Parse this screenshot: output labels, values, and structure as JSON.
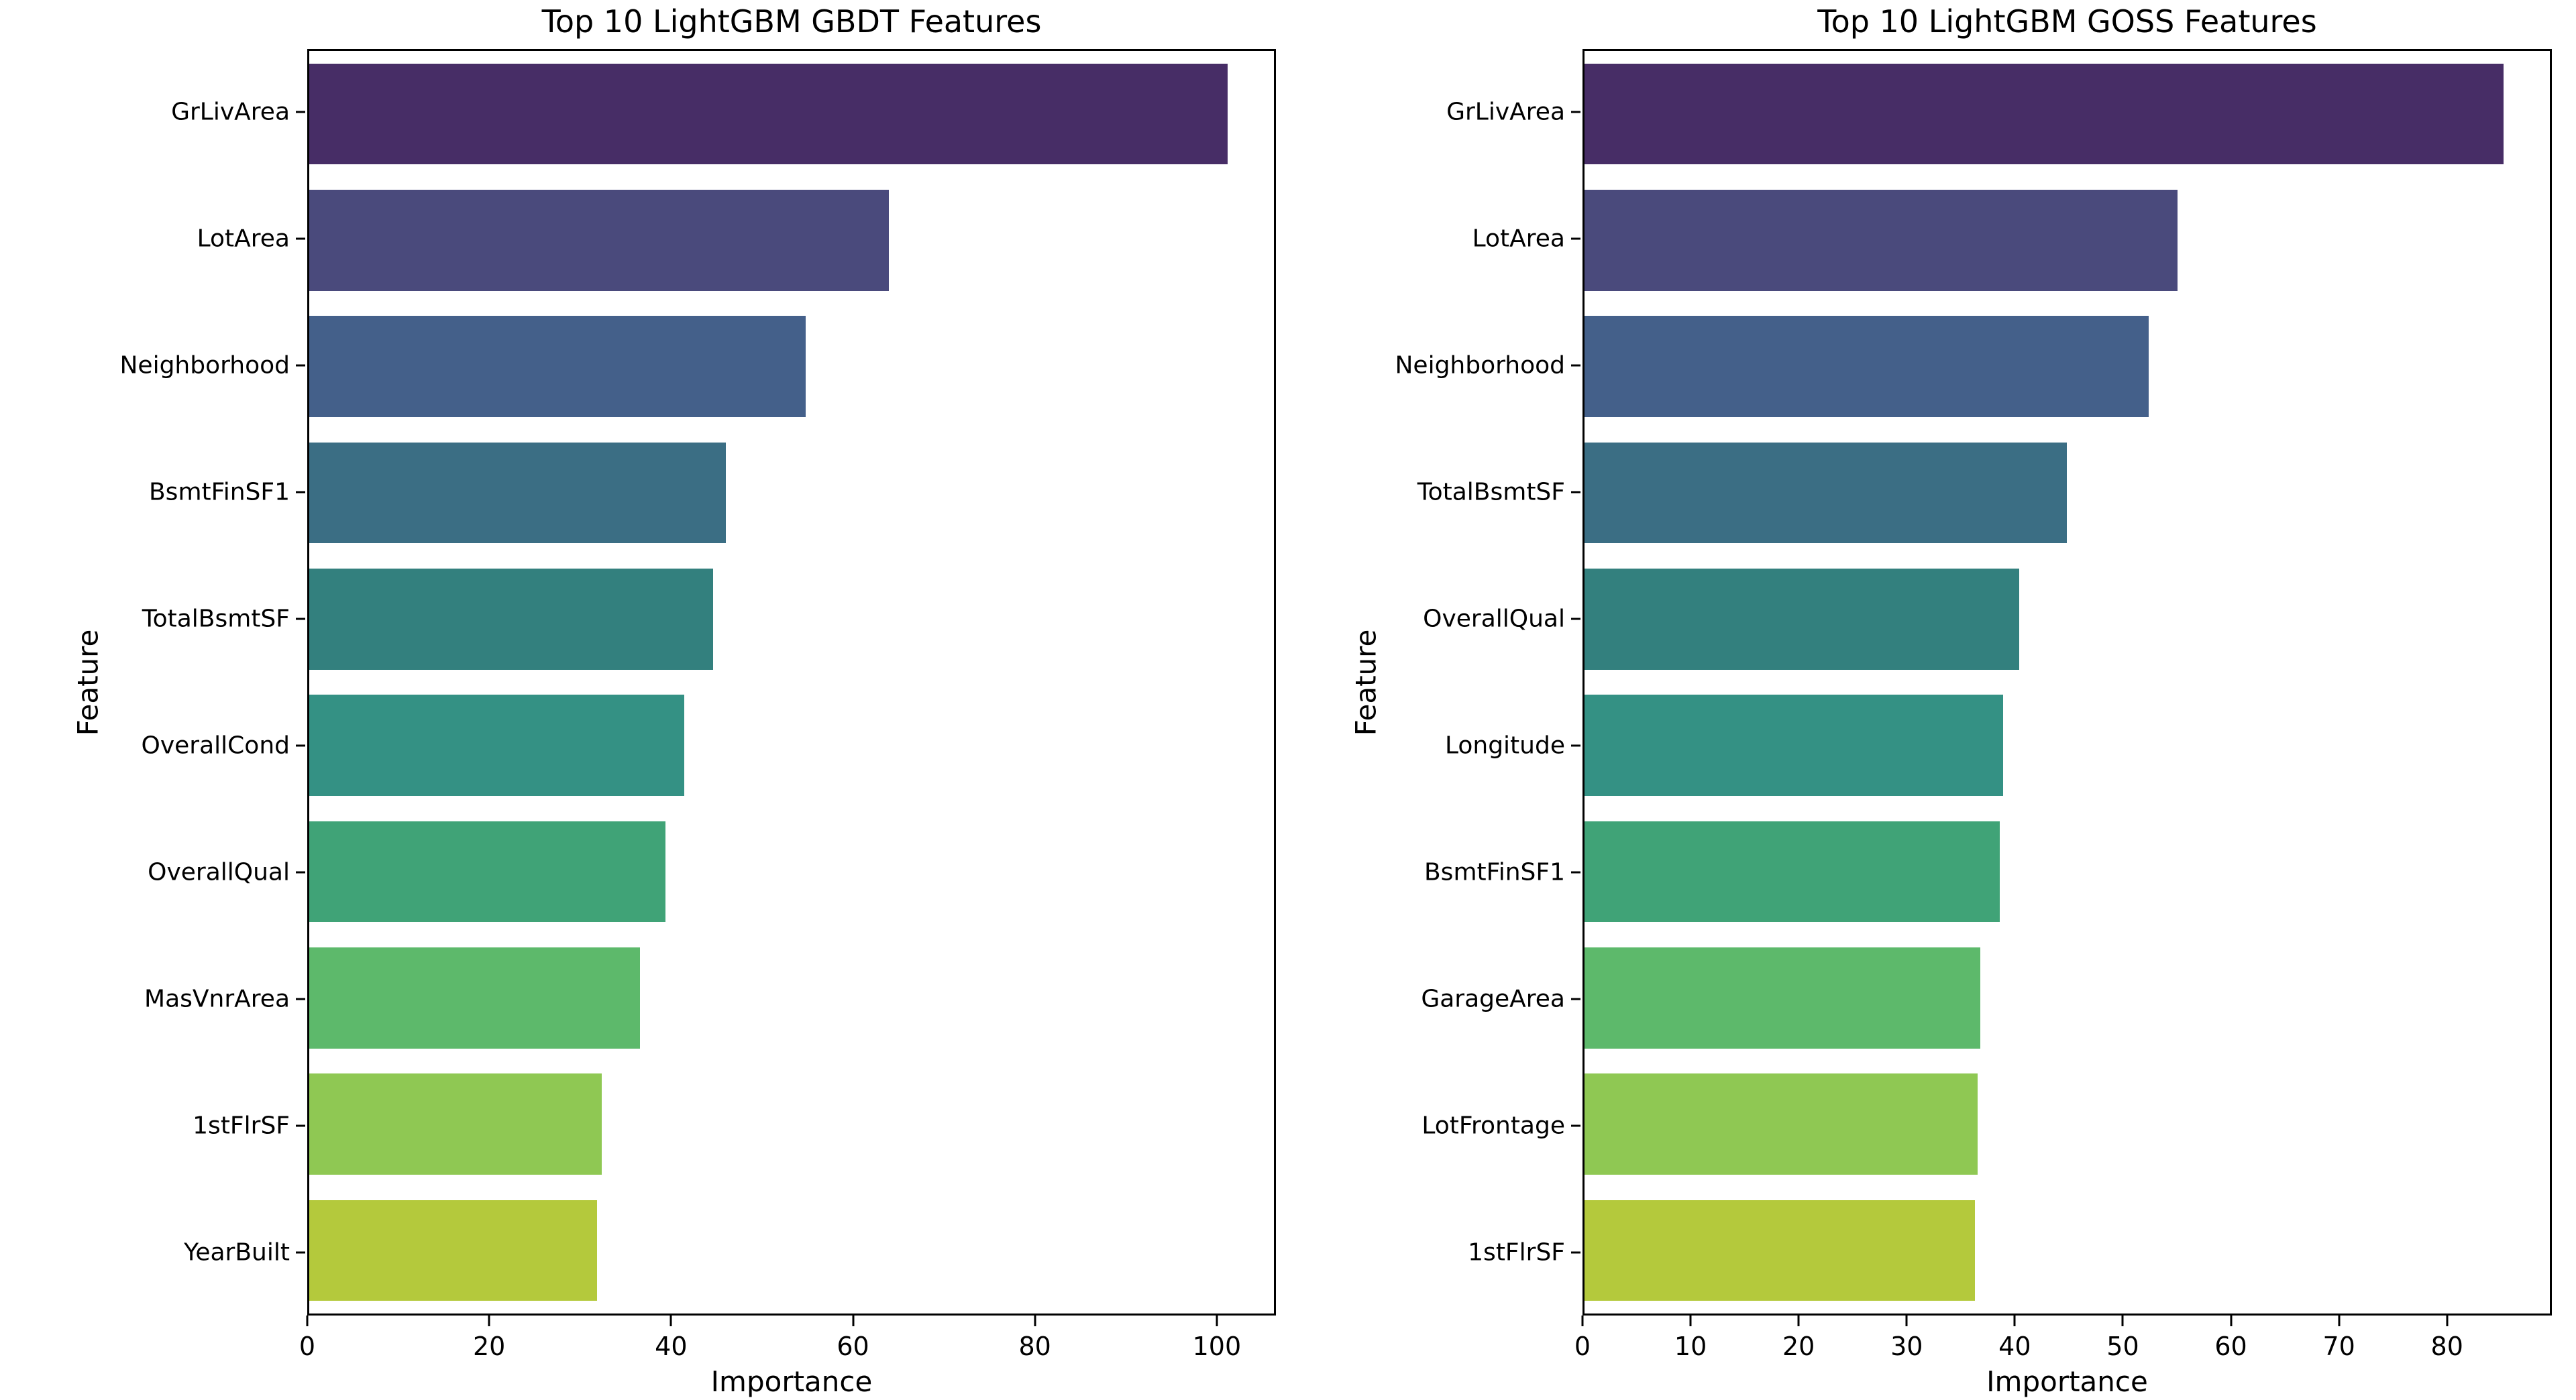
{
  "figure": {
    "background": "#ffffff",
    "palette": [
      "#472d66",
      "#4a4a7c",
      "#44608a",
      "#3b6e84",
      "#33807e",
      "#349184",
      "#40a377",
      "#5db96b",
      "#8fc853",
      "#b4c93c"
    ]
  },
  "chart_data": [
    {
      "type": "bar",
      "orientation": "horizontal",
      "title": "Top 10 LightGBM GBDT Features",
      "xlabel": "Importance",
      "ylabel": "Feature",
      "categories": [
        "GrLivArea",
        "LotArea",
        "Neighborhood",
        "BsmtFinSF1",
        "TotalBsmtSF",
        "OverallCond",
        "OverallQual",
        "MasVnrArea",
        "1stFlrSF",
        "YearBuilt"
      ],
      "values": [
        101.4,
        64.0,
        54.8,
        46.0,
        44.6,
        41.4,
        39.3,
        36.5,
        32.3,
        31.8
      ],
      "xlim": [
        0,
        106.5
      ],
      "xticks": [
        0,
        20,
        40,
        60,
        80,
        100
      ],
      "grid": false,
      "legend": null,
      "bar_colors": [
        "#472d66",
        "#4a4a7c",
        "#44608a",
        "#3b6e84",
        "#33807e",
        "#349184",
        "#40a377",
        "#5db96b",
        "#8fc853",
        "#b4c93c"
      ]
    },
    {
      "type": "bar",
      "orientation": "horizontal",
      "title": "Top 10 LightGBM GOSS Features",
      "xlabel": "Importance",
      "ylabel": "Feature",
      "categories": [
        "GrLivArea",
        "LotArea",
        "Neighborhood",
        "TotalBsmtSF",
        "OverallQual",
        "Longitude",
        "BsmtFinSF1",
        "GarageArea",
        "LotFrontage",
        "1stFlrSF"
      ],
      "values": [
        85.4,
        55.1,
        52.4,
        44.8,
        40.4,
        38.9,
        38.6,
        36.8,
        36.5,
        36.3
      ],
      "xlim": [
        0,
        89.7
      ],
      "xticks": [
        0,
        10,
        20,
        30,
        40,
        50,
        60,
        70,
        80
      ],
      "grid": false,
      "legend": null,
      "bar_colors": [
        "#472d66",
        "#4a4a7c",
        "#44608a",
        "#3b6e84",
        "#33807e",
        "#349184",
        "#40a377",
        "#5db96b",
        "#8fc853",
        "#b4c93c"
      ]
    }
  ]
}
